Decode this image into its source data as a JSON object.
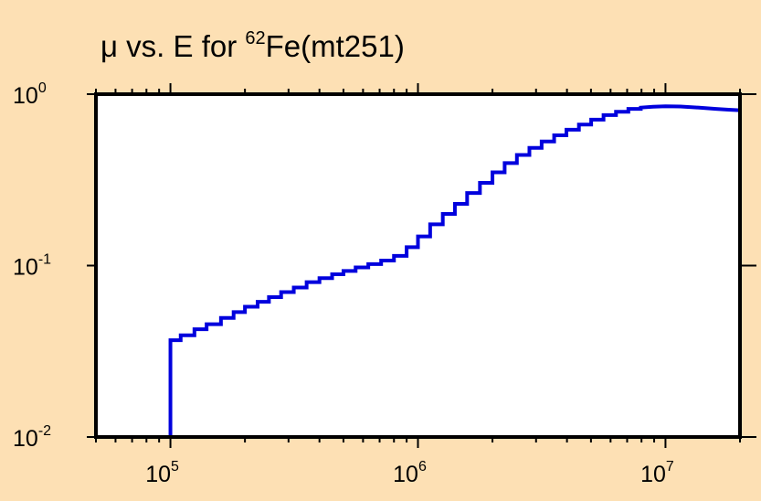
{
  "chart_data": {
    "type": "line",
    "title": {
      "prefix": "μ vs. E for ",
      "superscript": "62",
      "suffix": "Fe(mt251)"
    },
    "xlabel": "",
    "ylabel": "",
    "xscale": "log",
    "yscale": "log",
    "xlim": [
      50000,
      20000000
    ],
    "ylim": [
      0.01,
      1
    ],
    "x_ticks": [
      {
        "base": "10",
        "exp": "5",
        "value": 100000
      },
      {
        "base": "10",
        "exp": "6",
        "value": 1000000
      },
      {
        "base": "10",
        "exp": "7",
        "value": 10000000
      }
    ],
    "y_ticks": [
      {
        "base": "10",
        "exp": "0",
        "value": 1
      },
      {
        "base": "10",
        "exp": "-1",
        "value": 0.1
      },
      {
        "base": "10",
        "exp": "-2",
        "value": 0.01
      }
    ],
    "grid": false,
    "line_color": "#0000dd",
    "frame_color": "#000000",
    "plot_background": "#ffffff",
    "page_background": "#fde0b4",
    "series": [
      {
        "style": "step",
        "steps": [
          {
            "x": 100000,
            "y": 0.0367
          },
          {
            "x": 110000,
            "y": 0.0392
          },
          {
            "x": 125000,
            "y": 0.0425
          },
          {
            "x": 140000,
            "y": 0.0455
          },
          {
            "x": 160000,
            "y": 0.0495
          },
          {
            "x": 180000,
            "y": 0.0535
          },
          {
            "x": 200000,
            "y": 0.0575
          },
          {
            "x": 225000,
            "y": 0.0615
          },
          {
            "x": 250000,
            "y": 0.0655
          },
          {
            "x": 280000,
            "y": 0.07
          },
          {
            "x": 315000,
            "y": 0.0745
          },
          {
            "x": 355000,
            "y": 0.08
          },
          {
            "x": 400000,
            "y": 0.0845
          },
          {
            "x": 450000,
            "y": 0.089
          },
          {
            "x": 500000,
            "y": 0.093
          },
          {
            "x": 560000,
            "y": 0.0975
          },
          {
            "x": 630000,
            "y": 0.102
          },
          {
            "x": 710000,
            "y": 0.107
          },
          {
            "x": 800000,
            "y": 0.114
          },
          {
            "x": 900000,
            "y": 0.128
          },
          {
            "x": 1000000,
            "y": 0.148
          },
          {
            "x": 1120000,
            "y": 0.174
          },
          {
            "x": 1260000,
            "y": 0.2
          },
          {
            "x": 1410000,
            "y": 0.229
          },
          {
            "x": 1580000,
            "y": 0.265
          },
          {
            "x": 1780000,
            "y": 0.304
          },
          {
            "x": 2000000,
            "y": 0.35
          },
          {
            "x": 2240000,
            "y": 0.396
          },
          {
            "x": 2510000,
            "y": 0.442
          },
          {
            "x": 2820000,
            "y": 0.486
          },
          {
            "x": 3160000,
            "y": 0.53
          },
          {
            "x": 3550000,
            "y": 0.575
          },
          {
            "x": 3980000,
            "y": 0.62
          },
          {
            "x": 4470000,
            "y": 0.665
          },
          {
            "x": 5010000,
            "y": 0.71
          },
          {
            "x": 5620000,
            "y": 0.755
          },
          {
            "x": 6310000,
            "y": 0.79
          },
          {
            "x": 7080000,
            "y": 0.82
          }
        ],
        "smooth_tail": [
          {
            "x": 7950000,
            "y": 0.835
          },
          {
            "x": 8900000,
            "y": 0.845
          },
          {
            "x": 10000000,
            "y": 0.85
          },
          {
            "x": 11500000,
            "y": 0.847
          },
          {
            "x": 13500000,
            "y": 0.835
          },
          {
            "x": 16000000,
            "y": 0.82
          },
          {
            "x": 18000000,
            "y": 0.812
          },
          {
            "x": 20000000,
            "y": 0.805
          }
        ]
      }
    ]
  }
}
